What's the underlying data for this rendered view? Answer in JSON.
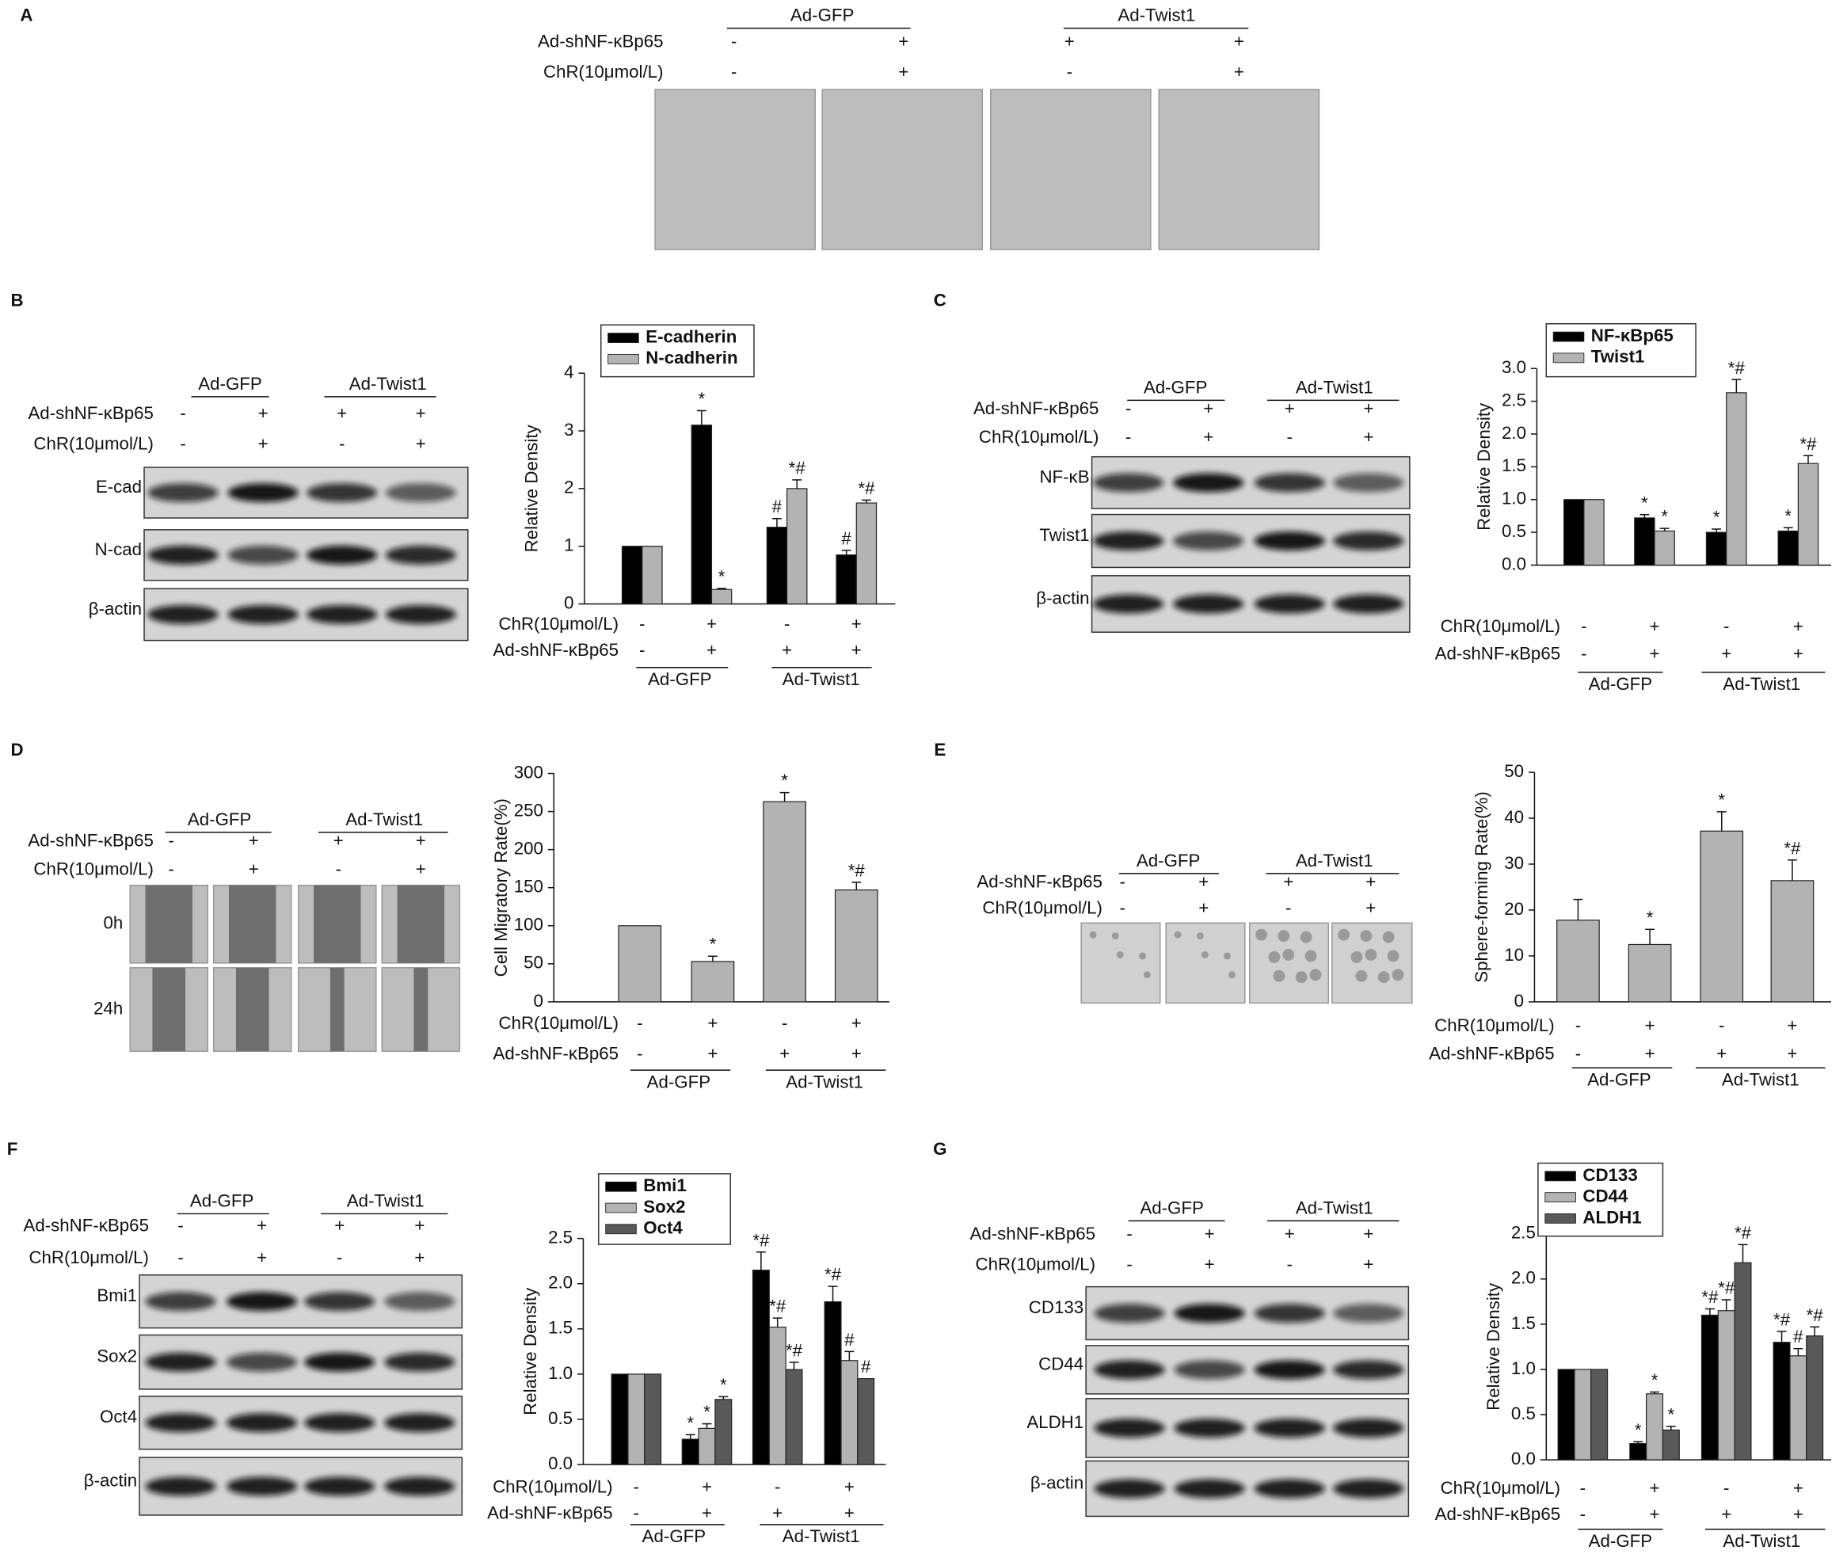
{
  "panels": [
    {
      "label": "A",
      "groups": [
        "Ad-GFP",
        "Ad-Twist1"
      ],
      "conditions": [
        {
          "name": "Ad-shNF-κBp65",
          "signs": [
            "-",
            "+",
            "+",
            "+"
          ]
        },
        {
          "name": "ChR(10μmol/L)",
          "signs": [
            "-",
            "+",
            "-",
            "+"
          ]
        }
      ]
    },
    {
      "label": "B",
      "groups": [
        "Ad-GFP",
        "Ad-Twist1"
      ],
      "conditions": [
        {
          "name": "Ad-shNF-κBp65",
          "signs": [
            "-",
            "+",
            "+",
            "+"
          ]
        },
        {
          "name": "ChR(10μmol/L)",
          "signs": [
            "-",
            "+",
            "-",
            "+"
          ]
        }
      ],
      "rows": [
        "E-cad",
        "N-cad",
        "β-actin"
      ]
    },
    {
      "label": "C",
      "groups": [
        "Ad-GFP",
        "Ad-Twist1"
      ],
      "conditions": [
        {
          "name": "Ad-shNF-κBp65",
          "signs": [
            "-",
            "+",
            "+",
            "+"
          ]
        },
        {
          "name": "ChR(10μmol/L)",
          "signs": [
            "-",
            "+",
            "-",
            "+"
          ]
        }
      ],
      "rows": [
        "NF-κB",
        "Twist1",
        "β-actin"
      ]
    },
    {
      "label": "D",
      "groups": [
        "Ad-GFP",
        "Ad-Twist1"
      ],
      "conditions": [
        {
          "name": "Ad-shNF-κBp65",
          "signs": [
            "-",
            "+",
            "+",
            "+"
          ]
        },
        {
          "name": "ChR(10μmol/L)",
          "signs": [
            "-",
            "+",
            "-",
            "+"
          ]
        }
      ],
      "rows": [
        "0h",
        "24h"
      ]
    },
    {
      "label": "E",
      "groups": [
        "Ad-GFP",
        "Ad-Twist1"
      ],
      "conditions": [
        {
          "name": "Ad-shNF-κBp65",
          "signs": [
            "-",
            "+",
            "+",
            "+"
          ]
        },
        {
          "name": "ChR(10μmol/L)",
          "signs": [
            "-",
            "+",
            "-",
            "+"
          ]
        }
      ]
    },
    {
      "label": "F",
      "groups": [
        "Ad-GFP",
        "Ad-Twist1"
      ],
      "conditions": [
        {
          "name": "Ad-shNF-κBp65",
          "signs": [
            "-",
            "+",
            "+",
            "+"
          ]
        },
        {
          "name": "ChR(10μmol/L)",
          "signs": [
            "-",
            "+",
            "-",
            "+"
          ]
        }
      ],
      "rows": [
        "Bmi1",
        "Sox2",
        "Oct4",
        "β-actin"
      ]
    },
    {
      "label": "G",
      "groups": [
        "Ad-GFP",
        "Ad-Twist1"
      ],
      "conditions": [
        {
          "name": "Ad-shNF-κBp65",
          "signs": [
            "-",
            "+",
            "+",
            "+"
          ]
        },
        {
          "name": "ChR(10μmol/L)",
          "signs": [
            "-",
            "+",
            "-",
            "+"
          ]
        }
      ],
      "rows": [
        "CD133",
        "CD44",
        "ALDH1",
        "β-actin"
      ]
    }
  ],
  "chart_data": [
    {
      "type": "bar",
      "y_label": "Relative Density",
      "ylim": [
        0,
        4
      ],
      "yticks": [
        0,
        1,
        2,
        3,
        4
      ],
      "conditions": [
        {
          "name": "ChR(10μmol/L)",
          "signs": [
            "-",
            "+",
            "-",
            "+"
          ]
        },
        {
          "name": "Ad-shNF-κBp65",
          "signs": [
            "-",
            "+",
            "+",
            "+"
          ]
        }
      ],
      "groups": [
        "Ad-GFP",
        "Ad-Twist1"
      ],
      "series": [
        {
          "name": "E-cadherin",
          "color": "#000000",
          "values": [
            1,
            3.1,
            1.33,
            0.85
          ],
          "errors": [
            null,
            0.25,
            0.15,
            0.08
          ],
          "annotations": [
            null,
            "*",
            "#",
            "#"
          ]
        },
        {
          "name": "N-cadherin",
          "color": "#b3b3b3",
          "values": [
            1,
            0.25,
            2.0,
            1.75
          ],
          "errors": [
            null,
            0.02,
            0.15,
            0.05
          ],
          "annotations": [
            null,
            "*",
            "*#",
            "*#"
          ]
        }
      ]
    },
    {
      "type": "bar",
      "y_label": "Relative Density",
      "ylim": [
        0,
        3
      ],
      "yticks": [
        {
          "value": 0,
          "label": "0.0"
        },
        0.5,
        {
          "value": 1,
          "label": "1.0"
        },
        1.5,
        {
          "value": 2,
          "label": "2.0"
        },
        2.5,
        {
          "value": 3,
          "label": "3.0"
        }
      ],
      "conditions": [
        {
          "name": "ChR(10μmol/L)",
          "signs": [
            "-",
            "+",
            "-",
            "+"
          ]
        },
        {
          "name": "Ad-shNF-κBp65",
          "signs": [
            "-",
            "+",
            "+",
            "+"
          ]
        }
      ],
      "groups": [
        "Ad-GFP",
        "Ad-Twist1"
      ],
      "series": [
        {
          "name": "NF-κBp65",
          "color": "#000000",
          "values": [
            1,
            0.72,
            0.5,
            0.52
          ],
          "errors": [
            null,
            0.05,
            0.05,
            0.05
          ],
          "annotations": [
            null,
            "*",
            "*",
            "*"
          ]
        },
        {
          "name": "Twist1",
          "color": "#b3b3b3",
          "values": [
            1,
            0.52,
            2.63,
            1.55
          ],
          "errors": [
            null,
            0.04,
            0.2,
            0.12
          ],
          "annotations": [
            null,
            "*",
            "*#",
            "*#"
          ]
        }
      ]
    },
    {
      "type": "bar",
      "y_label": "Cell Migratory Rate(%)",
      "ylim": [
        0,
        300
      ],
      "yticks": [
        0,
        50,
        100,
        150,
        200,
        250,
        300
      ],
      "conditions": [
        {
          "name": "ChR(10μmol/L)",
          "signs": [
            "-",
            "+",
            "-",
            "+"
          ]
        },
        {
          "name": "Ad-shNF-κBp65",
          "signs": [
            "-",
            "+",
            "+",
            "+"
          ]
        }
      ],
      "groups": [
        "Ad-GFP",
        "Ad-Twist1"
      ],
      "color": "#b3b3b3",
      "values": [
        100,
        53,
        263,
        147
      ],
      "errors": [
        null,
        7,
        12,
        10
      ],
      "annotations": [
        null,
        "*",
        "*",
        "*#"
      ]
    },
    {
      "type": "bar",
      "y_label": "Sphere-forming Rate(%)",
      "ylim": [
        0,
        50
      ],
      "yticks": [
        0,
        10,
        20,
        30,
        40,
        50
      ],
      "conditions": [
        {
          "name": "ChR(10μmol/L)",
          "signs": [
            "-",
            "+",
            "-",
            "+"
          ]
        },
        {
          "name": "Ad-shNF-κBp65",
          "signs": [
            "-",
            "+",
            "+",
            "+"
          ]
        }
      ],
      "groups": [
        "Ad-GFP",
        "Ad-Twist1"
      ],
      "color": "#b3b3b3",
      "values": [
        17.8,
        12.5,
        37.2,
        26.4
      ],
      "errors": [
        4.5,
        3.3,
        4.2,
        4.5
      ],
      "annotations": [
        null,
        "*",
        "*",
        "*#"
      ]
    },
    {
      "type": "bar",
      "y_label": "Relative Density",
      "ylim": [
        0,
        2.5
      ],
      "yticks": [
        {
          "value": 0,
          "label": "0.0"
        },
        0.5,
        {
          "value": 1,
          "label": "1.0"
        },
        1.5,
        {
          "value": 2,
          "label": "2.0"
        },
        2.5
      ],
      "conditions": [
        {
          "name": "ChR(10μmol/L)",
          "signs": [
            "-",
            "+",
            "-",
            "+"
          ]
        },
        {
          "name": "Ad-shNF-κBp65",
          "signs": [
            "-",
            "+",
            "+",
            "+"
          ]
        }
      ],
      "groups": [
        "Ad-GFP",
        "Ad-Twist1"
      ],
      "series": [
        {
          "name": "Bmi1",
          "color": "#000000",
          "values": [
            1,
            0.28,
            2.15,
            1.8
          ],
          "errors": [
            null,
            0.05,
            0.2,
            0.17
          ],
          "annotations": [
            null,
            "*",
            "*#",
            "*#"
          ]
        },
        {
          "name": "Sox2",
          "color": "#b3b3b3",
          "values": [
            1,
            0.4,
            1.52,
            1.15
          ],
          "errors": [
            null,
            0.05,
            0.1,
            0.1
          ],
          "annotations": [
            null,
            "*",
            "*#",
            "#"
          ]
        },
        {
          "name": "Oct4",
          "color": "#595959",
          "values": [
            1,
            0.72,
            1.05,
            0.95
          ],
          "errors": [
            null,
            0.03,
            0.08,
            null
          ],
          "annotations": [
            null,
            "*",
            "*#",
            "#"
          ]
        }
      ]
    },
    {
      "type": "bar",
      "y_label": "Relative Density",
      "ylim": [
        0,
        2.5
      ],
      "yticks": [
        {
          "value": 0,
          "label": "0.0"
        },
        0.5,
        {
          "value": 1,
          "label": "1.0"
        },
        1.5,
        {
          "value": 2,
          "label": "2.0"
        },
        2.5
      ],
      "conditions": [
        {
          "name": "ChR(10μmol/L)",
          "signs": [
            "-",
            "+",
            "-",
            "+"
          ]
        },
        {
          "name": "Ad-shNF-κBp65",
          "signs": [
            "-",
            "+",
            "+",
            "+"
          ]
        }
      ],
      "groups": [
        "Ad-GFP",
        "Ad-Twist1"
      ],
      "series": [
        {
          "name": "CD133",
          "color": "#000000",
          "values": [
            1,
            0.18,
            1.6,
            1.3
          ],
          "errors": [
            null,
            0.02,
            0.07,
            0.12
          ],
          "annotations": [
            null,
            "*",
            "*#",
            "*#"
          ]
        },
        {
          "name": "CD44",
          "color": "#b3b3b3",
          "values": [
            1,
            0.73,
            1.65,
            1.15
          ],
          "errors": [
            null,
            0.02,
            0.12,
            0.08
          ],
          "annotations": [
            null,
            "*",
            "*#",
            "#"
          ]
        },
        {
          "name": "ALDH1",
          "color": "#595959",
          "values": [
            1,
            0.33,
            2.18,
            1.37
          ],
          "errors": [
            null,
            0.04,
            0.2,
            0.1
          ],
          "annotations": [
            null,
            "*",
            "*#",
            "*#"
          ]
        }
      ]
    }
  ]
}
